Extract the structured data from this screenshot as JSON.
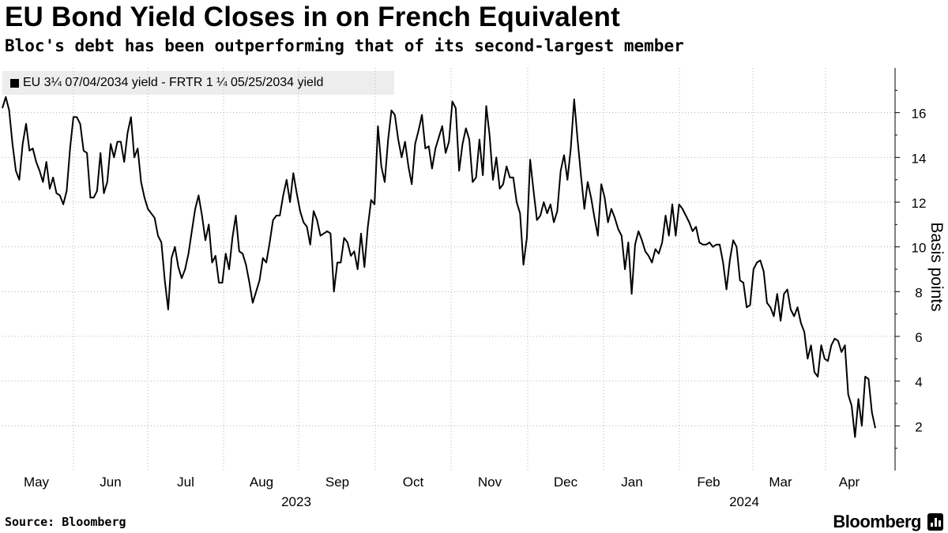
{
  "header": {
    "title": "EU Bond Yield Closes in on French Equivalent",
    "subtitle": "Bloc's debt has been outperforming that of its second-largest member"
  },
  "legend": {
    "label": "EU 3¼  07/04/2034 yield - FRTR 1 ¼  05/25/2034 yield"
  },
  "footer": {
    "source": "Source: Bloomberg",
    "brand": "Bloomberg"
  },
  "colors": {
    "line": "#000000",
    "grid": "#b3b3b3",
    "legend_bg": "#ededed"
  },
  "chart_data": {
    "type": "line",
    "title": "EU Bond Yield Closes in on French Equivalent",
    "subtitle": "Bloc's debt has been outperforming that of its second-largest member",
    "ylabel": "Basis points",
    "xlabel": "",
    "ylim": [
      0,
      18
    ],
    "yticks": [
      2,
      4,
      6,
      8,
      10,
      12,
      14,
      16
    ],
    "grid": true,
    "legend_position": "top-left",
    "month_labels": [
      "May",
      "Jun",
      "Jul",
      "Aug",
      "Sep",
      "Oct",
      "Nov",
      "Dec",
      "Jan",
      "Feb",
      "Mar",
      "Apr"
    ],
    "year_labels": [
      "2023",
      "2024"
    ],
    "series": [
      {
        "name": "EU 3¼  07/04/2034 yield - FRTR 1 ¼  05/25/2034 yield",
        "values": [
          16.2,
          16.7,
          16.1,
          14.6,
          13.4,
          13.0,
          14.6,
          15.5,
          14.3,
          14.4,
          13.8,
          13.4,
          12.9,
          13.8,
          12.6,
          13.1,
          12.4,
          12.3,
          11.9,
          12.5,
          14.4,
          15.8,
          15.8,
          15.5,
          14.3,
          14.2,
          12.2,
          12.2,
          12.5,
          14.2,
          12.4,
          12.9,
          14.6,
          14.0,
          14.7,
          14.7,
          13.8,
          15.1,
          15.8,
          14.0,
          14.4,
          12.9,
          12.2,
          11.7,
          11.5,
          11.3,
          10.5,
          10.2,
          8.5,
          7.2,
          9.5,
          10.0,
          9.1,
          8.6,
          9.0,
          9.7,
          10.7,
          11.7,
          12.3,
          11.4,
          10.3,
          11.0,
          9.3,
          9.6,
          8.4,
          8.4,
          9.7,
          9.0,
          10.4,
          11.4,
          9.8,
          9.7,
          9.2,
          8.4,
          7.5,
          8.0,
          8.5,
          9.5,
          9.3,
          10.2,
          11.2,
          11.4,
          11.4,
          12.3,
          13.0,
          12.0,
          13.3,
          12.4,
          11.6,
          11.1,
          10.9,
          10.1,
          11.6,
          11.2,
          10.5,
          10.6,
          10.7,
          10.6,
          8.0,
          9.3,
          9.3,
          10.4,
          10.2,
          9.6,
          9.8,
          9.0,
          10.6,
          9.1,
          10.9,
          12.1,
          11.9,
          15.4,
          13.6,
          12.9,
          14.8,
          16.1,
          15.9,
          14.8,
          14.0,
          14.7,
          13.6,
          12.8,
          14.6,
          15.2,
          15.9,
          14.4,
          14.5,
          13.5,
          14.4,
          14.9,
          15.4,
          14.2,
          14.7,
          16.5,
          16.2,
          13.4,
          14.6,
          15.3,
          14.8,
          12.9,
          13.1,
          14.8,
          13.2,
          16.3,
          15.0,
          13.0,
          14.0,
          12.6,
          12.8,
          13.6,
          13.1,
          13.1,
          12.0,
          11.5,
          9.2,
          10.4,
          13.9,
          12.5,
          11.2,
          11.4,
          12.0,
          11.5,
          11.9,
          11.1,
          11.6,
          13.4,
          14.1,
          13.0,
          14.4,
          16.6,
          14.8,
          13.2,
          11.7,
          12.9,
          12.2,
          11.3,
          10.5,
          12.8,
          12.2,
          11.1,
          11.7,
          11.3,
          10.8,
          10.5,
          9.0,
          10.2,
          7.9,
          10.1,
          10.7,
          10.3,
          9.8,
          9.6,
          9.3,
          9.9,
          9.7,
          10.2,
          11.4,
          10.5,
          11.9,
          10.5,
          11.9,
          11.7,
          11.4,
          11.1,
          10.7,
          10.9,
          10.2,
          10.1,
          10.1,
          10.2,
          10.0,
          10.1,
          10.1,
          9.3,
          8.1,
          9.4,
          10.3,
          10.0,
          8.5,
          8.4,
          7.3,
          7.4,
          9.0,
          9.3,
          9.4,
          8.9,
          7.5,
          7.3,
          6.9,
          7.9,
          6.7,
          7.9,
          8.1,
          7.2,
          6.9,
          7.3,
          6.6,
          6.2,
          5.0,
          5.6,
          4.4,
          4.2,
          5.6,
          5.0,
          4.9,
          5.6,
          5.9,
          5.8,
          5.3,
          5.6,
          3.4,
          2.9,
          1.5,
          3.2,
          2.0,
          4.2,
          4.1,
          2.6,
          1.9
        ]
      }
    ]
  }
}
